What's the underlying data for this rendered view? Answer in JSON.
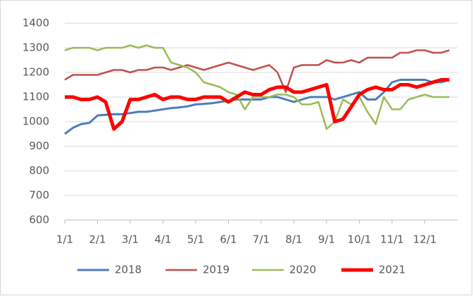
{
  "chart_data": {
    "type": "line",
    "categories": [
      "1/1",
      null,
      null,
      null,
      "2/1",
      null,
      null,
      null,
      "3/1",
      null,
      null,
      null,
      "4/1",
      null,
      null,
      null,
      "5/1",
      null,
      null,
      null,
      "6/1",
      null,
      null,
      null,
      "7/1",
      null,
      null,
      null,
      "8/1",
      null,
      null,
      null,
      "9/1",
      null,
      null,
      null,
      "10/1",
      null,
      null,
      null,
      "11/1",
      null,
      null,
      null,
      "12/1",
      null,
      null,
      null
    ],
    "series": [
      {
        "name": "2018",
        "color": "#4a7ebb",
        "width": 3,
        "values": [
          950,
          975,
          990,
          995,
          1025,
          1028,
          1030,
          1030,
          1035,
          1040,
          1040,
          1045,
          1050,
          1055,
          1058,
          1062,
          1070,
          1072,
          1075,
          1080,
          1085,
          1090,
          1090,
          1090,
          1090,
          1100,
          1100,
          1090,
          1080,
          1090,
          1100,
          1100,
          1100,
          1090,
          1100,
          1110,
          1120,
          1090,
          1090,
          1120,
          1160,
          1170,
          1170,
          1170,
          1170,
          1160,
          1160,
          1170
        ]
      },
      {
        "name": "2019",
        "color": "#c0504d",
        "width": 2.5,
        "values": [
          1170,
          1190,
          1190,
          1190,
          1190,
          1200,
          1210,
          1210,
          1200,
          1210,
          1210,
          1220,
          1220,
          1210,
          1220,
          1230,
          1220,
          1210,
          1220,
          1230,
          1240,
          1230,
          1220,
          1210,
          1220,
          1230,
          1200,
          1120,
          1220,
          1230,
          1230,
          1230,
          1250,
          1240,
          1240,
          1250,
          1240,
          1260,
          1260,
          1260,
          1260,
          1280,
          1280,
          1290,
          1290,
          1280,
          1280,
          1290
        ]
      },
      {
        "name": "2020",
        "color": "#9bbb59",
        "width": 2.5,
        "values": [
          1290,
          1300,
          1300,
          1300,
          1290,
          1300,
          1300,
          1300,
          1310,
          1300,
          1310,
          1300,
          1300,
          1240,
          1230,
          1220,
          1200,
          1160,
          1150,
          1140,
          1120,
          1110,
          1050,
          1100,
          1100,
          1100,
          1110,
          1110,
          1100,
          1070,
          1070,
          1080,
          970,
          1000,
          1090,
          1070,
          1100,
          1040,
          990,
          1100,
          1050,
          1050,
          1090,
          1100,
          1110,
          1100,
          1100,
          1100
        ]
      },
      {
        "name": "2021",
        "color": "#ff0000",
        "width": 5,
        "values": [
          1100,
          1100,
          1090,
          1090,
          1100,
          1080,
          970,
          1000,
          1090,
          1090,
          1100,
          1110,
          1090,
          1100,
          1100,
          1090,
          1090,
          1100,
          1100,
          1100,
          1080,
          1100,
          1120,
          1110,
          1110,
          1130,
          1140,
          1140,
          1120,
          1120,
          1130,
          1140,
          1150,
          1000,
          1010,
          1060,
          1110,
          1130,
          1140,
          1130,
          1130,
          1150,
          1150,
          1140,
          1150,
          1160,
          1170,
          1170
        ]
      }
    ],
    "ylim": [
      600,
      1400
    ],
    "yticks": [
      600,
      700,
      800,
      900,
      1000,
      1100,
      1200,
      1300,
      1400
    ],
    "grid": true,
    "legend": "bottom"
  }
}
